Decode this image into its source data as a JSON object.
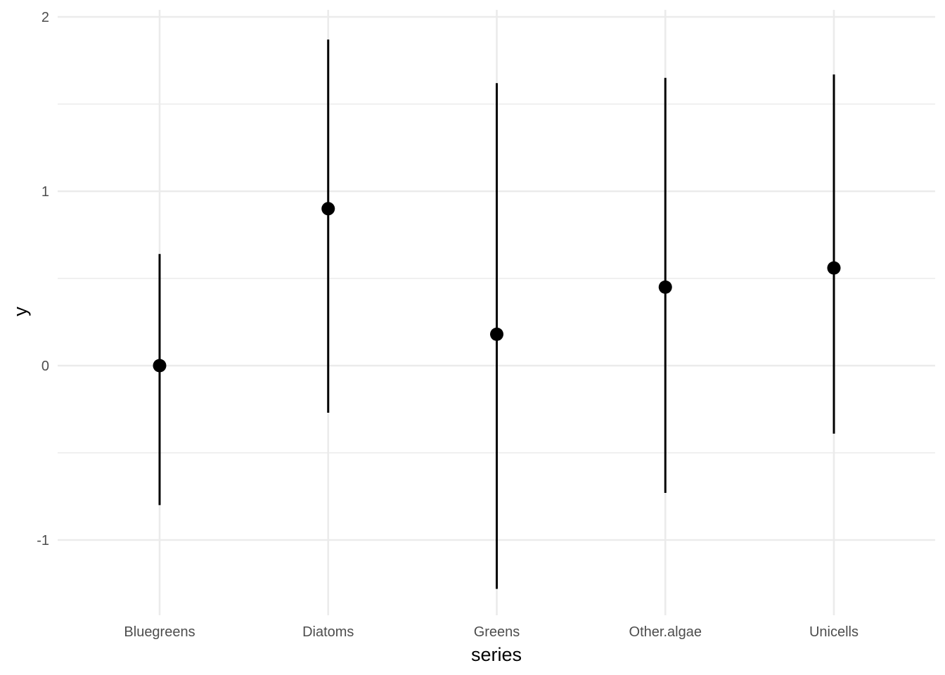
{
  "chart_data": {
    "type": "pointrange",
    "title": "",
    "xlabel": "series",
    "ylabel": "y",
    "categories": [
      "Bluegreens",
      "Diatoms",
      "Greens",
      "Other.algae",
      "Unicells"
    ],
    "points": [
      {
        "category": "Bluegreens",
        "y": 0.0,
        "ymin": -0.8,
        "ymax": 0.64
      },
      {
        "category": "Diatoms",
        "y": 0.9,
        "ymin": -0.27,
        "ymax": 1.87
      },
      {
        "category": "Greens",
        "y": 0.18,
        "ymin": -1.28,
        "ymax": 1.62
      },
      {
        "category": "Other.algae",
        "y": 0.45,
        "ymin": -0.73,
        "ymax": 1.65
      },
      {
        "category": "Unicells",
        "y": 0.56,
        "ymin": -0.39,
        "ymax": 1.67
      }
    ],
    "yticks": [
      -1,
      0,
      1,
      2
    ],
    "ytick_labels": [
      "-1",
      "0",
      "1",
      "2"
    ],
    "ylim": [
      -1.42,
      2.05
    ],
    "grid": true,
    "legend": "none",
    "colors": {
      "point": "#000000",
      "grid": "#ebebeb",
      "tick_text": "#4d4d4d",
      "background": "#ffffff"
    }
  }
}
